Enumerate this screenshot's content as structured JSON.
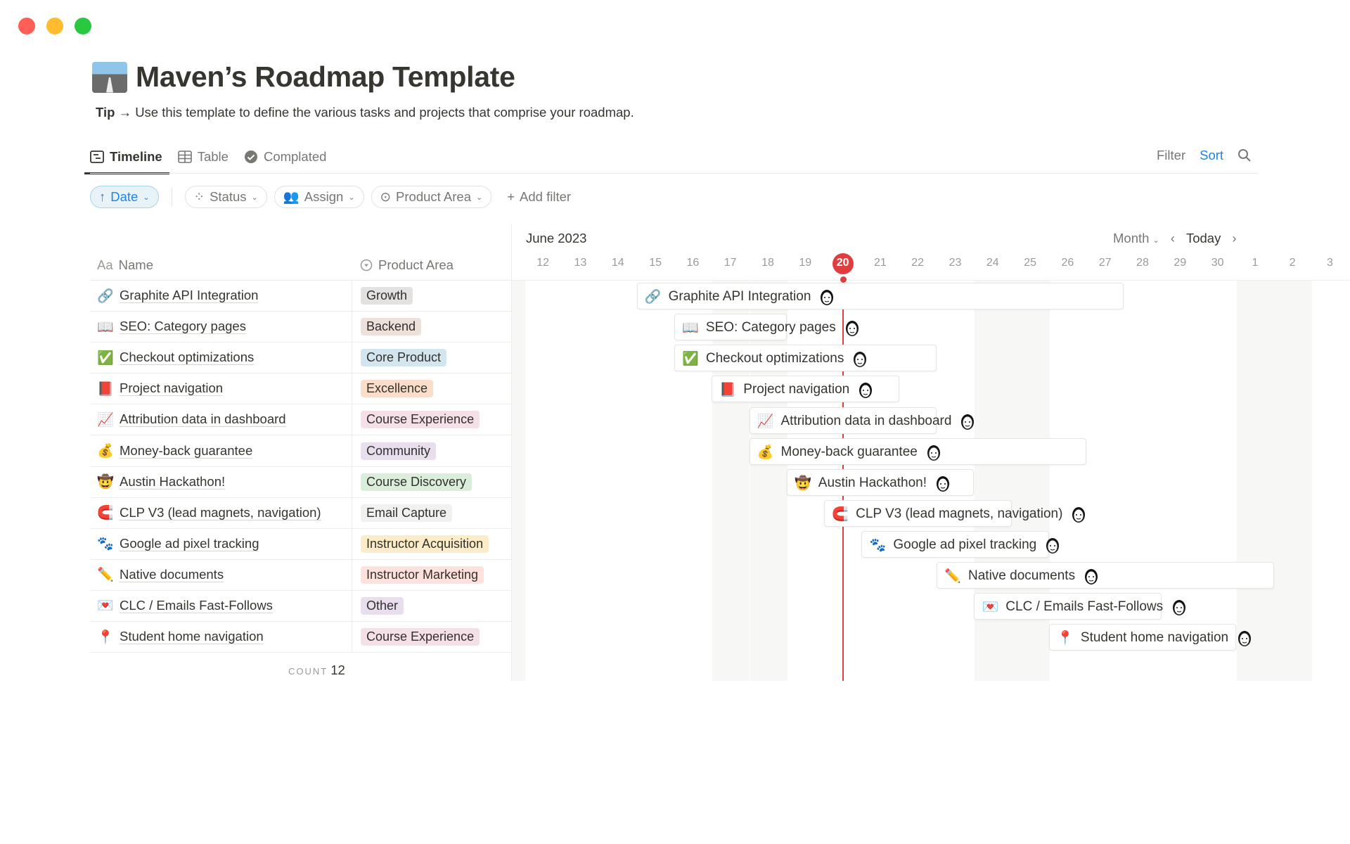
{
  "window": {
    "controls": [
      {
        "name": "close",
        "color": "#ff5f57"
      },
      {
        "name": "minimize",
        "color": "#febc2e"
      },
      {
        "name": "maximize",
        "color": "#28c840"
      }
    ]
  },
  "page": {
    "title": "Maven’s Roadmap Template",
    "title_icon": "motorway-emoji",
    "tip_label": "Tip →",
    "tip_text": "Use this template to define the various tasks and projects that comprise your roadmap."
  },
  "tabs": [
    {
      "label": "Timeline",
      "icon": "timeline-icon",
      "active": true
    },
    {
      "label": "Table",
      "icon": "table-icon"
    },
    {
      "label": "Complated",
      "icon": "check-circle-icon"
    }
  ],
  "actions": {
    "filter": "Filter",
    "sort": "Sort",
    "search_icon": "search-icon",
    "accent": "#2383e2"
  },
  "filters": {
    "sort_chip": "Date",
    "chips": [
      {
        "label": "Status",
        "icon": "status-icon"
      },
      {
        "label": "Assign",
        "icon": "people-icon"
      },
      {
        "label": "Product Area",
        "icon": "select-icon"
      }
    ],
    "add_filter": "Add filter"
  },
  "table": {
    "col_name": "Name",
    "col_name_prefix": "Aa",
    "col_area": "Product Area",
    "count_label": "COUNT",
    "count": "12"
  },
  "timeline": {
    "month": "June 2023",
    "view": "Month",
    "today_label": "Today",
    "today": "20",
    "today_color": "#e03e3e",
    "ticks": [
      "12",
      "13",
      "14",
      "15",
      "16",
      "17",
      "18",
      "19",
      "20",
      "21",
      "22",
      "23",
      "24",
      "25",
      "26",
      "27",
      "28",
      "29",
      "30",
      "1",
      "2",
      "3"
    ]
  },
  "tag_colors": {
    "Growth": "#e3e2e0",
    "Backend": "#eee0da",
    "Core Product": "#d3e5ef",
    "Excellence": "#fadec9",
    "Course Experience": "#f5e0e9",
    "Community": "#e8deee",
    "Course Discovery": "#dbeddb",
    "Email Capture": "#f1f1ef",
    "Instructor Acquisition": "#fdecc8",
    "Instructor Marketing": "#ffe2dd",
    "Other": "#e8deee"
  },
  "rows": [
    {
      "emoji": "🔗",
      "name": "Graphite API Integration",
      "area": "Growth",
      "start": "2023-06-15",
      "end": "2023-06-27"
    },
    {
      "emoji": "📖",
      "name": "SEO: Category pages",
      "area": "Backend",
      "start": "2023-06-16",
      "end": "2023-06-18"
    },
    {
      "emoji": "✅",
      "name": "Checkout optimizations",
      "area": "Core Product",
      "start": "2023-06-16",
      "end": "2023-06-22"
    },
    {
      "emoji": "📕",
      "name": "Project navigation",
      "area": "Excellence",
      "start": "2023-06-17",
      "end": "2023-06-21"
    },
    {
      "emoji": "📈",
      "name": "Attribution data in dashboard",
      "area": "Course Experience",
      "start": "2023-06-18",
      "end": "2023-06-22"
    },
    {
      "emoji": "💰",
      "name": "Money-back guarantee",
      "area": "Community",
      "start": "2023-06-18",
      "end": "2023-06-26"
    },
    {
      "emoji": "🤠",
      "name": "Austin Hackathon!",
      "area": "Course Discovery",
      "start": "2023-06-19",
      "end": "2023-06-23"
    },
    {
      "emoji": "🧲",
      "name": "CLP V3 (lead magnets, navigation)",
      "area": "Email Capture",
      "start": "2023-06-20",
      "end": "2023-06-24"
    },
    {
      "emoji": "🐾",
      "name": "Google ad pixel tracking",
      "area": "Instructor Acquisition",
      "start": "2023-06-21",
      "end": "2023-06-25"
    },
    {
      "emoji": "✏️",
      "name": "Native documents",
      "area": "Instructor Marketing",
      "start": "2023-06-23",
      "end": "2023-07-01"
    },
    {
      "emoji": "💌",
      "name": "CLC / Emails Fast-Follows",
      "area": "Other",
      "start": "2023-06-24",
      "end": "2023-06-28"
    },
    {
      "emoji": "📍",
      "name": "Student home navigation",
      "area": "Course Experience",
      "start": "2023-06-26",
      "end": "2023-06-30"
    }
  ]
}
